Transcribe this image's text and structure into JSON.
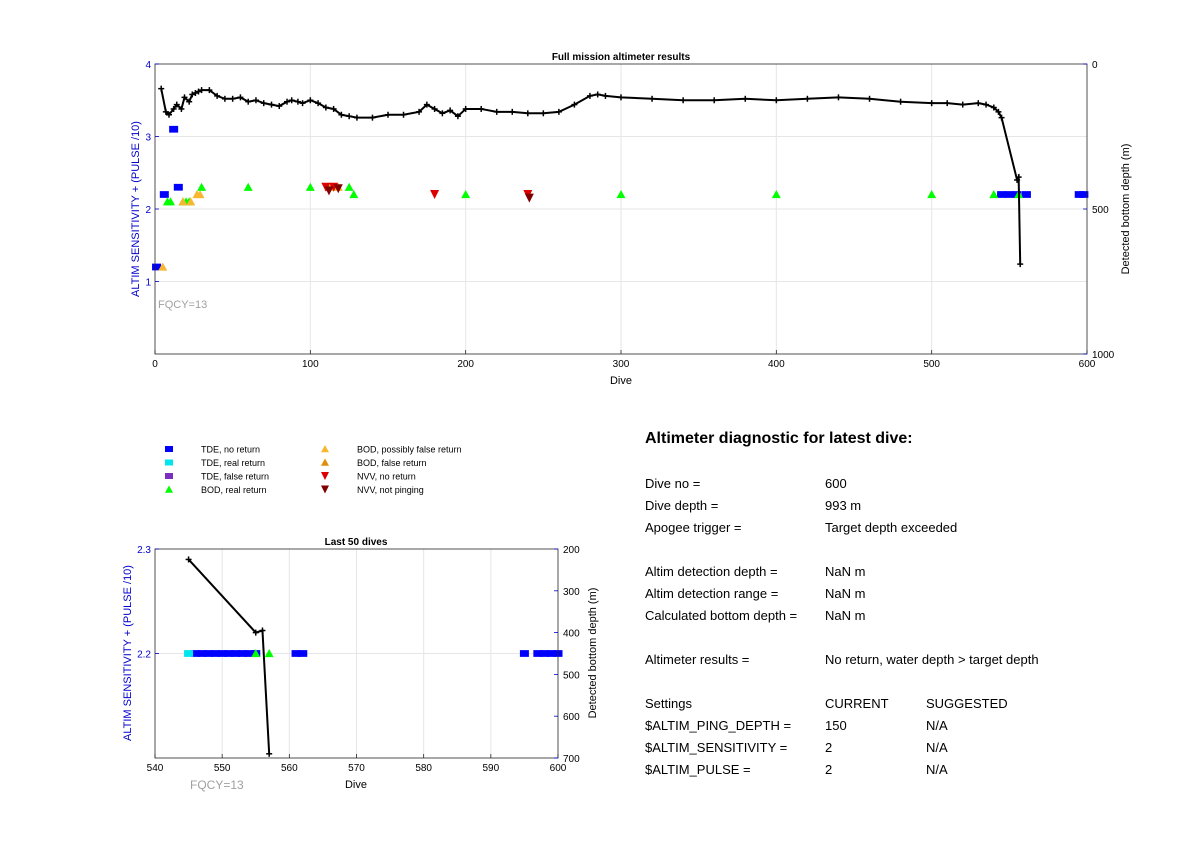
{
  "chart_data": [
    {
      "type": "scatter",
      "title": "Full mission altimeter results",
      "xlabel": "Dive",
      "ylabel": "ALTIM SENSITIVITY + (PULSE /10)",
      "y2label": "Detected bottom depth (m)",
      "xlim": [
        0,
        600
      ],
      "ylim": [
        0,
        4
      ],
      "y2lim": [
        0,
        1000
      ],
      "y2_reversed": true,
      "xticks": [
        0,
        100,
        200,
        300,
        400,
        500,
        600
      ],
      "yticks": [
        1,
        2,
        3,
        4
      ],
      "y2ticks": [
        0,
        500,
        1000
      ],
      "grid": true,
      "annotation": "FQCY=13",
      "series": [
        {
          "marker": "tde-no",
          "color": "#0000ff",
          "points": [
            [
              1,
              1.2
            ],
            [
              6,
              2.2
            ],
            [
              12,
              3.1
            ],
            [
              15,
              2.3
            ],
            [
              545,
              2.2
            ],
            [
              550,
              2.2
            ],
            [
              555,
              2.2
            ],
            [
              561,
              2.2
            ],
            [
              595,
              2.2
            ],
            [
              598,
              2.2
            ]
          ]
        },
        {
          "marker": "bod-real",
          "color": "#00ff00",
          "points": [
            [
              8,
              2.1
            ],
            [
              10,
              2.1
            ],
            [
              18,
              2.1
            ],
            [
              20,
              2.1
            ],
            [
              22,
              2.1
            ],
            [
              30,
              2.3
            ],
            [
              60,
              2.3
            ],
            [
              100,
              2.3
            ],
            [
              125,
              2.3
            ],
            [
              128,
              2.2
            ],
            [
              200,
              2.2
            ],
            [
              300,
              2.2
            ],
            [
              400,
              2.2
            ],
            [
              500,
              2.2
            ],
            [
              540,
              2.2
            ],
            [
              556,
              2.2
            ]
          ]
        },
        {
          "marker": "bod-possibly",
          "color": "#f7b731",
          "points": [
            [
              5,
              1.2
            ],
            [
              18,
              2.1
            ],
            [
              23,
              2.1
            ],
            [
              27,
              2.2
            ],
            [
              29,
              2.2
            ],
            [
              112,
              2.3
            ],
            [
              118,
              2.3
            ]
          ]
        },
        {
          "marker": "nvv-no",
          "color": "#dd0000",
          "points": [
            [
              110,
              2.3
            ],
            [
              115,
              2.3
            ],
            [
              180,
              2.2
            ],
            [
              240,
              2.2
            ]
          ]
        },
        {
          "marker": "nvv-noping",
          "color": "#800000",
          "points": [
            [
              112,
              2.25
            ],
            [
              118,
              2.28
            ],
            [
              241,
              2.15
            ]
          ]
        }
      ],
      "depth_series": {
        "x": [
          4,
          7,
          9,
          12,
          14,
          17,
          19,
          22,
          24,
          26,
          28,
          30,
          35,
          40,
          45,
          50,
          55,
          60,
          65,
          70,
          75,
          80,
          85,
          88,
          92,
          95,
          100,
          105,
          110,
          115,
          120,
          125,
          130,
          140,
          150,
          160,
          170,
          175,
          180,
          185,
          190,
          195,
          200,
          210,
          220,
          230,
          240,
          250,
          260,
          270,
          280,
          285,
          290,
          300,
          320,
          340,
          360,
          380,
          400,
          420,
          440,
          460,
          480,
          500,
          510,
          520,
          530,
          535,
          540,
          543,
          545,
          555,
          556,
          557
        ],
        "depth": [
          85,
          165,
          175,
          155,
          140,
          155,
          115,
          130,
          105,
          100,
          95,
          90,
          90,
          110,
          120,
          120,
          115,
          130,
          125,
          135,
          140,
          145,
          130,
          125,
          130,
          135,
          125,
          135,
          150,
          155,
          175,
          180,
          185,
          185,
          175,
          175,
          165,
          140,
          155,
          170,
          160,
          180,
          155,
          155,
          165,
          165,
          170,
          170,
          165,
          140,
          110,
          105,
          110,
          115,
          120,
          125,
          125,
          120,
          125,
          120,
          115,
          120,
          130,
          135,
          135,
          140,
          135,
          140,
          150,
          165,
          185,
          400,
          390,
          690
        ]
      }
    },
    {
      "type": "scatter",
      "title": "Last 50 dives",
      "xlabel": "Dive",
      "ylabel": "ALTIM SENSITIVITY + (PULSE /10)",
      "y2label": "Detected bottom depth (m)",
      "xlim": [
        540,
        600
      ],
      "ylim": [
        2.1,
        2.3
      ],
      "y2lim": [
        200,
        700
      ],
      "y2_reversed": true,
      "xticks": [
        540,
        550,
        560,
        570,
        580,
        590,
        600
      ],
      "yticks": [
        2.2,
        2.3
      ],
      "y2ticks": [
        200,
        300,
        400,
        500,
        600,
        700
      ],
      "grid": true,
      "annotation": "FQCY=13",
      "series": [
        {
          "marker": "tde-no",
          "color": "#0000ff",
          "points": [
            [
              546,
              2.2
            ],
            [
              547,
              2.2
            ],
            [
              548,
              2.2
            ],
            [
              549,
              2.2
            ],
            [
              550,
              2.2
            ],
            [
              551,
              2.2
            ],
            [
              552,
              2.2
            ],
            [
              553,
              2.2
            ],
            [
              554,
              2.2
            ],
            [
              555,
              2.2
            ],
            [
              561,
              2.2
            ],
            [
              562,
              2.2
            ],
            [
              595,
              2.2
            ],
            [
              597,
              2.2
            ],
            [
              598,
              2.2
            ],
            [
              599,
              2.2
            ],
            [
              600,
              2.2
            ]
          ]
        },
        {
          "marker": "tde-real",
          "color": "#00e5ee",
          "points": [
            [
              545,
              2.2
            ]
          ]
        },
        {
          "marker": "bod-real",
          "color": "#00ff00",
          "points": [
            [
              555,
              2.2
            ],
            [
              557,
              2.2
            ]
          ]
        }
      ],
      "depth_series": {
        "x": [
          545,
          555,
          556,
          557
        ],
        "depth": [
          225,
          400,
          395,
          690
        ]
      }
    }
  ],
  "legend": {
    "items": [
      {
        "label": "TDE, no return",
        "marker": "tde-no",
        "color": "#0000ff"
      },
      {
        "label": "TDE, real return",
        "marker": "tde-real",
        "color": "#00e5ee"
      },
      {
        "label": "TDE, false return",
        "marker": "tde-false",
        "color": "#7b2fbe"
      },
      {
        "label": "BOD, real return",
        "marker": "bod-real",
        "color": "#00ff00"
      },
      {
        "label": "BOD, possibly false return",
        "marker": "bod-possibly",
        "color": "#f7b731"
      },
      {
        "label": "BOD, false return",
        "marker": "bod-false",
        "color": "#e08e0b"
      },
      {
        "label": "NVV, no return",
        "marker": "nvv-no",
        "color": "#dd0000"
      },
      {
        "label": "NVV, not pinging",
        "marker": "nvv-noping",
        "color": "#800000"
      }
    ]
  },
  "diagnostic": {
    "title": "Altimeter diagnostic for latest dive:",
    "dive_no_label": "Dive no =",
    "dive_no": "600",
    "dive_depth_label": "Dive depth =",
    "dive_depth": "993 m",
    "apogee_label": "Apogee trigger =",
    "apogee": "Target depth exceeded",
    "det_depth_label": "Altim detection depth =",
    "det_depth": "NaN m",
    "det_range_label": "Altim detection range =",
    "det_range": "NaN m",
    "calc_depth_label": "Calculated bottom depth =",
    "calc_depth": "NaN m",
    "results_label": "Altimeter results =",
    "results": "No return, water depth > target depth",
    "settings_label": "Settings",
    "current_label": "CURRENT",
    "suggested_label": "SUGGESTED",
    "ping_label": "$ALTIM_PING_DEPTH =",
    "ping_current": "150",
    "ping_suggested": "N/A",
    "sens_label": "$ALTIM_SENSITIVITY =",
    "sens_current": "2",
    "sens_suggested": "N/A",
    "pulse_label": "$ALTIM_PULSE =",
    "pulse_current": "2",
    "pulse_suggested": "N/A"
  },
  "colors": {
    "axis_label": "#0000cc",
    "depth_line": "#000000",
    "grid": "#e6e6e6",
    "fqcy": "#a0a0a0"
  }
}
